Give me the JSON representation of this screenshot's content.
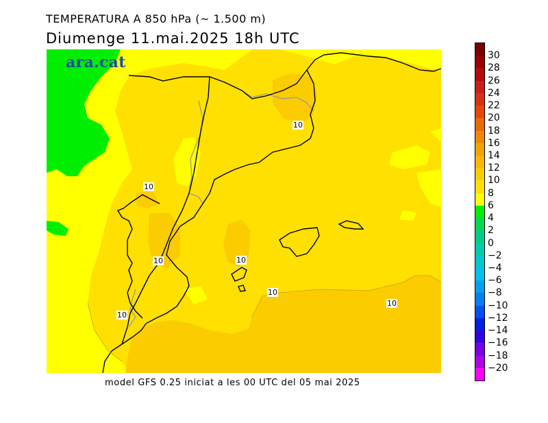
{
  "title_line1": "TEMPERATURA A 850 hPa (~ 1.500 m)",
  "title_line2": "Diumenge  11.mai.2025 18h UTC",
  "footer": "model GFS 0.25 iniciat a les 00 UTC del 05 mai 2025",
  "logo_text": "ara.cat",
  "contour_labels": [
    "10",
    "10",
    "10",
    "10",
    "10",
    "10",
    "10"
  ],
  "colorbar": {
    "ticks": [
      "30",
      "28",
      "26",
      "24",
      "22",
      "20",
      "18",
      "16",
      "14",
      "12",
      "10",
      "8",
      "6",
      "4",
      "2",
      "0",
      "−2",
      "−4",
      "−6",
      "−8",
      "−10",
      "−12",
      "−14",
      "−16",
      "−18",
      "−20"
    ],
    "colors": [
      "#7a0000",
      "#9a0000",
      "#b40a0a",
      "#c81e1e",
      "#d83214",
      "#e6460a",
      "#e86a00",
      "#ee8800",
      "#f4a200",
      "#f8b800",
      "#fbcc00",
      "#ffe000",
      "#ffff00",
      "#00ee00",
      "#00d850",
      "#00cc88",
      "#00ccaa",
      "#00c8cc",
      "#00c0ee",
      "#00a0f0",
      "#0080f0",
      "#0050f0",
      "#0020e0",
      "#3000e6",
      "#7800e6",
      "#b000e6",
      "#ff00ff"
    ]
  },
  "map_colors": {
    "yellow_8_10": "#ffe000",
    "orange_10_12": "#fbcc00",
    "light_yellow_6_8": "#ffff00",
    "green_4_6": "#00ee00"
  }
}
